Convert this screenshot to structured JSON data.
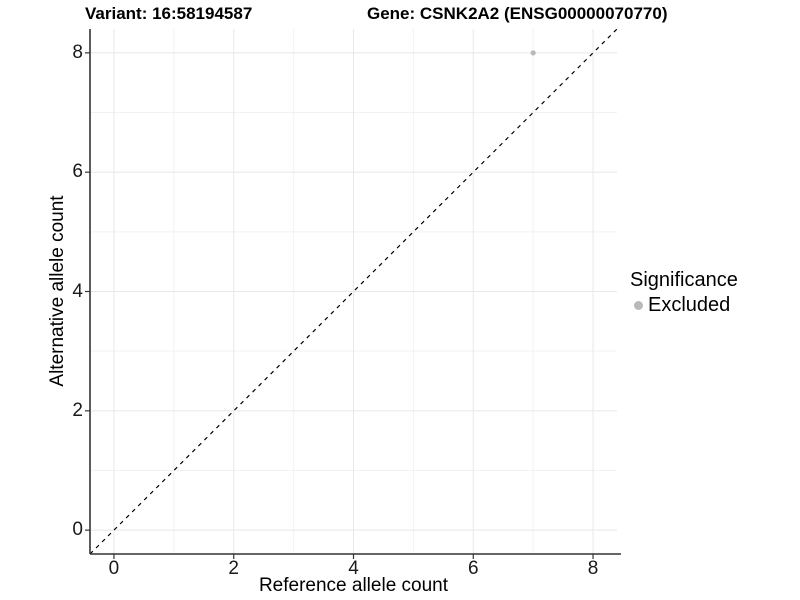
{
  "chart_data": {
    "type": "scatter",
    "title_left": "Variant: 16:58194587",
    "title_right": "Gene: CSNK2A2 (ENSG00000070770)",
    "xlabel": "Reference allele count",
    "ylabel": "Alternative allele count",
    "xlim": [
      -0.4,
      8.4
    ],
    "ylim": [
      -0.4,
      8.4
    ],
    "x_major_ticks": [
      0,
      2,
      4,
      6,
      8
    ],
    "x_minor_ticks": [
      1,
      3,
      5,
      7
    ],
    "y_major_ticks": [
      0,
      2,
      4,
      6,
      8
    ],
    "y_minor_ticks": [
      1,
      3,
      5,
      7
    ],
    "grid": "on",
    "reference_line": {
      "type": "identity y=x",
      "style": "dashed",
      "color": "#000000"
    },
    "series": [
      {
        "name": "Excluded",
        "color": "#b9b9b9",
        "points": [
          {
            "x": 7,
            "y": 8
          }
        ]
      }
    ],
    "legend": {
      "position": "right",
      "title": "Significance",
      "items": [
        {
          "label": "Excluded",
          "color": "#b9b9b9"
        }
      ]
    },
    "colors": {
      "background": "#ffffff",
      "grid_major": "#e8e8e8",
      "grid_minor": "#f2f2f2",
      "axis_line": "#333333",
      "tick": "#333333",
      "point": "#b9b9b9",
      "text": "#000000"
    }
  }
}
